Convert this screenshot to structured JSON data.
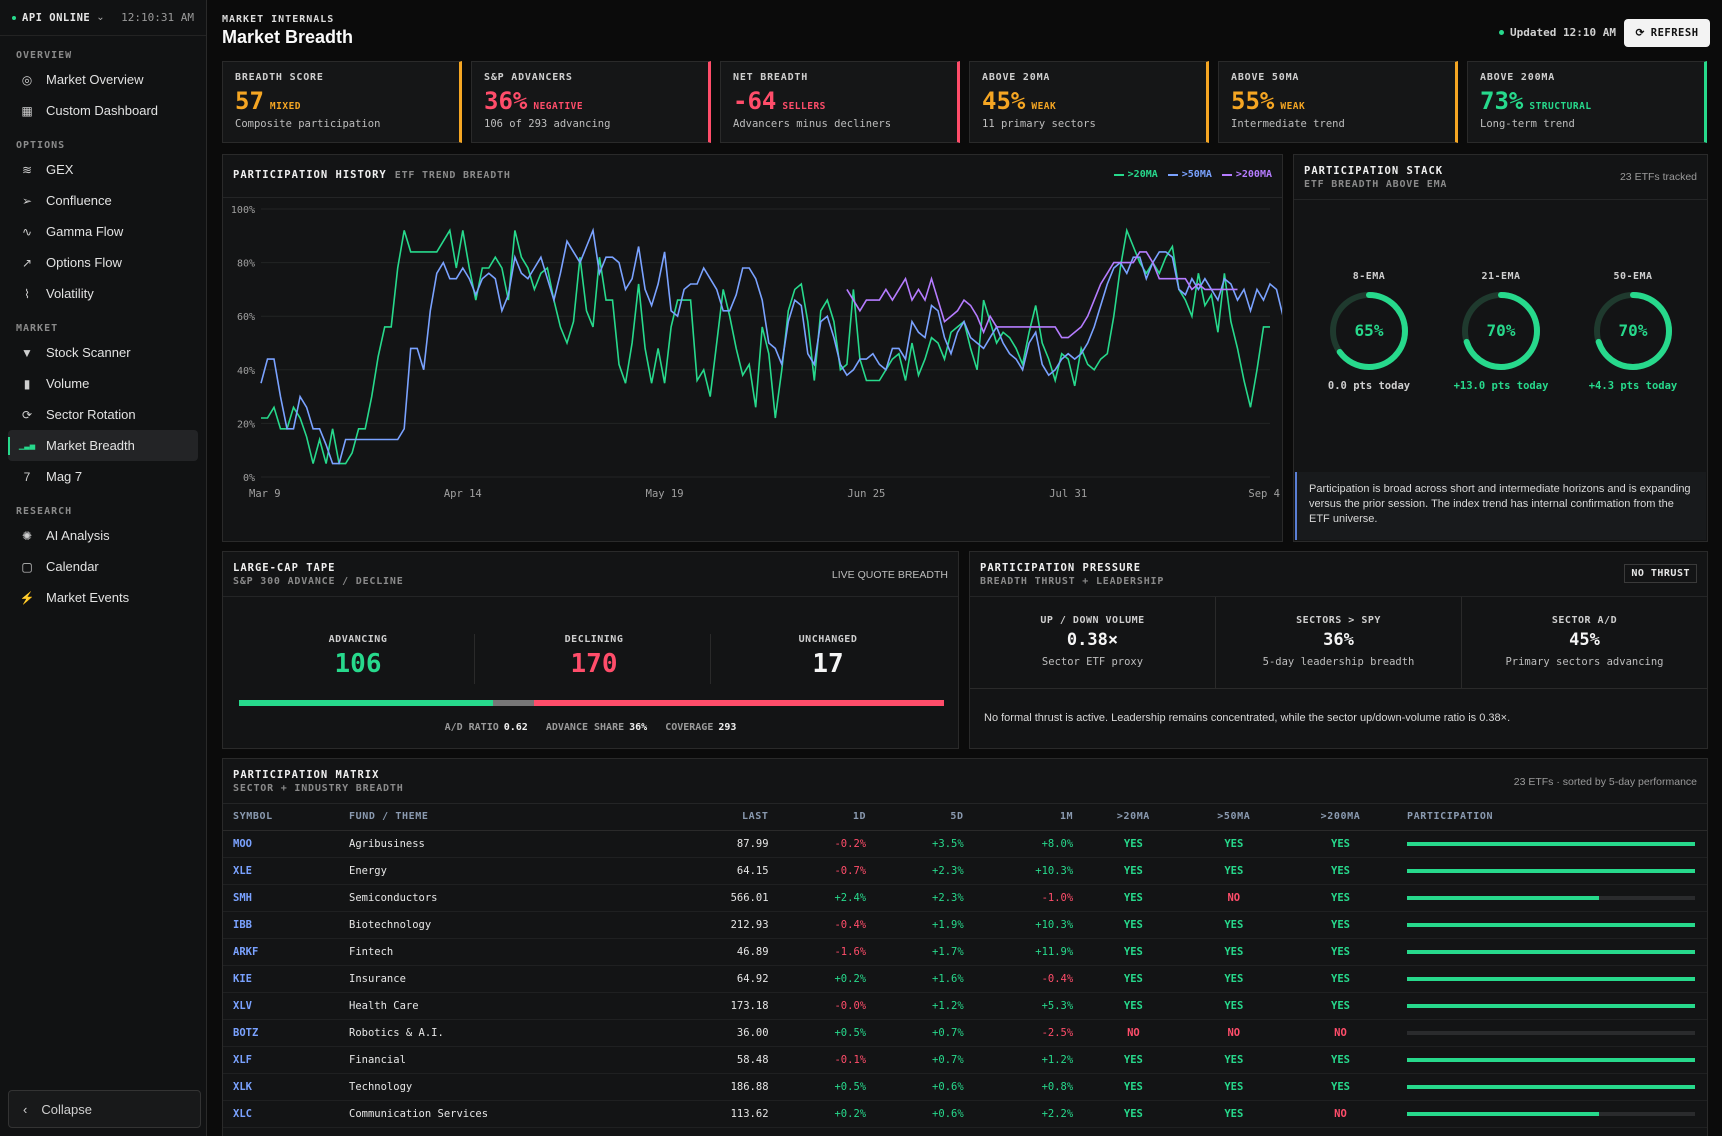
{
  "sidebar": {
    "api_status": "API ONLINE",
    "time": "12:10:31 AM",
    "sections": [
      {
        "label": "OVERVIEW",
        "items": [
          {
            "label": "Market Overview",
            "icon": "target-icon"
          },
          {
            "label": "Custom Dashboard",
            "icon": "grid-icon"
          }
        ]
      },
      {
        "label": "OPTIONS",
        "items": [
          {
            "label": "GEX",
            "icon": "layers-icon"
          },
          {
            "label": "Confluence",
            "icon": "send-icon"
          },
          {
            "label": "Gamma Flow",
            "icon": "pulse-icon"
          },
          {
            "label": "Options Flow",
            "icon": "trend-icon"
          },
          {
            "label": "Volatility",
            "icon": "chart-icon"
          }
        ]
      },
      {
        "label": "MARKET",
        "items": [
          {
            "label": "Stock Scanner",
            "icon": "filter-icon"
          },
          {
            "label": "Volume",
            "icon": "bar-chart-icon"
          },
          {
            "label": "Sector Rotation",
            "icon": "refresh-icon"
          },
          {
            "label": "Market Breadth",
            "icon": "signal-icon",
            "active": true
          },
          {
            "label": "Mag 7",
            "icon": "seven-icon"
          }
        ]
      },
      {
        "label": "RESEARCH",
        "items": [
          {
            "label": "AI Analysis",
            "icon": "ai-icon"
          },
          {
            "label": "Calendar",
            "icon": "calendar-icon"
          },
          {
            "label": "Market Events",
            "icon": "bolt-icon"
          }
        ]
      }
    ],
    "collapse_label": "Collapse"
  },
  "header": {
    "kicker": "MARKET INTERNALS",
    "title": "Market Breadth",
    "updated": "Updated 12:10 AM",
    "refresh": "REFRESH"
  },
  "cards": [
    {
      "label": "BREADTH SCORE",
      "value": "57",
      "tag": "MIXED",
      "desc": "Composite participation",
      "color": "#f5a623",
      "border": "#f5a623"
    },
    {
      "label": "S&P ADVANCERS",
      "value": "36%",
      "tag": "NEGATIVE",
      "desc": "106 of 293 advancing",
      "color": "#ff4d6a",
      "border": "#ff4d6a"
    },
    {
      "label": "NET BREADTH",
      "value": "-64",
      "tag": "SELLERS",
      "desc": "Advancers minus decliners",
      "color": "#ff4d6a",
      "border": "#ff4d6a"
    },
    {
      "label": "ABOVE 20MA",
      "value": "45%",
      "tag": "WEAK",
      "desc": "11 primary sectors",
      "color": "#f5a623",
      "border": "#f5a623"
    },
    {
      "label": "ABOVE 50MA",
      "value": "55%",
      "tag": "WEAK",
      "desc": "Intermediate trend",
      "color": "#f5a623",
      "border": "#f5a623"
    },
    {
      "label": "ABOVE 200MA",
      "value": "73%",
      "tag": "STRUCTURAL",
      "desc": "Long-term trend",
      "color": "#27d98c",
      "border": "#27d98c"
    }
  ],
  "history": {
    "title": "PARTICIPATION HISTORY",
    "subtitle": "ETF TREND BREADTH",
    "chart_data": {
      "type": "line",
      "x_labels": [
        "Mar 9",
        "Apr 14",
        "May 19",
        "Jun 25",
        "Jul 31",
        "Sep 4"
      ],
      "y_ticks": [
        "0%",
        "20%",
        "40%",
        "60%",
        "80%",
        "100%"
      ],
      "ylim": [
        0,
        100
      ],
      "series": [
        {
          "name": ">20MA",
          "color": "#27d98c",
          "values": [
            22,
            22,
            26,
            18,
            18,
            26,
            22,
            15,
            5,
            14,
            5,
            18,
            5,
            5,
            9,
            18,
            18,
            30,
            45,
            56,
            56,
            78,
            92,
            84,
            84,
            84,
            84,
            84,
            88,
            92,
            78,
            92,
            78,
            66,
            78,
            78,
            82,
            78,
            66,
            92,
            82,
            78,
            70,
            76,
            78,
            66,
            56,
            50,
            58,
            82,
            62,
            56,
            82,
            66,
            66,
            42,
            35,
            50,
            72,
            48,
            35,
            48,
            35,
            56,
            66,
            66,
            66,
            36,
            40,
            30,
            50,
            70,
            60,
            48,
            38,
            42,
            26,
            56,
            46,
            22,
            40,
            62,
            70,
            72,
            58,
            36,
            62,
            66,
            58,
            40,
            42,
            70,
            44,
            36,
            36,
            36,
            40,
            44,
            46,
            36,
            50,
            38,
            44,
            52,
            50,
            44,
            54,
            56,
            58,
            48,
            40,
            66,
            58,
            50,
            54,
            52,
            48,
            42,
            54,
            64,
            50,
            44,
            36,
            46,
            44,
            34,
            48,
            42,
            40,
            44,
            46,
            60,
            78,
            92,
            86,
            80,
            76,
            80,
            76,
            82,
            86,
            70,
            66,
            60,
            76,
            64,
            68,
            54,
            76,
            58,
            48,
            36,
            26,
            40,
            56,
            56
          ]
        },
        {
          "name": ">50MA",
          "color": "#7aa2ff",
          "values": [
            35,
            44,
            44,
            30,
            18,
            18,
            30,
            26,
            18,
            18,
            12,
            5,
            5,
            14,
            14,
            14,
            14,
            14,
            14,
            14,
            14,
            14,
            18,
            48,
            48,
            40,
            62,
            76,
            80,
            74,
            74,
            78,
            74,
            68,
            74,
            76,
            74,
            62,
            68,
            82,
            76,
            74,
            78,
            82,
            74,
            66,
            76,
            88,
            84,
            80,
            86,
            92,
            76,
            82,
            82,
            80,
            70,
            74,
            86,
            70,
            64,
            72,
            84,
            62,
            60,
            70,
            72,
            72,
            78,
            74,
            70,
            62,
            62,
            68,
            78,
            78,
            74,
            66,
            50,
            48,
            42,
            58,
            66,
            64,
            46,
            42,
            58,
            60,
            52,
            42,
            38,
            40,
            44,
            44,
            46,
            42,
            40,
            48,
            48,
            44,
            58,
            54,
            52,
            64,
            62,
            52,
            46,
            54,
            58,
            52,
            50,
            48,
            52,
            56,
            50,
            46,
            44,
            40,
            50,
            54,
            42,
            38,
            40,
            44,
            46,
            44,
            46,
            50,
            56,
            64,
            72,
            78,
            80,
            76,
            82,
            82,
            74,
            80,
            84,
            84,
            82,
            70,
            68,
            74,
            70,
            74,
            70,
            66,
            74,
            72,
            66,
            70,
            62,
            70,
            66,
            72,
            70,
            60
          ]
        },
        {
          "name": ">200MA",
          "color": "#b57cff",
          "values": [
            null,
            null,
            null,
            null,
            null,
            null,
            null,
            null,
            null,
            null,
            null,
            null,
            null,
            null,
            null,
            null,
            null,
            null,
            null,
            null,
            null,
            null,
            null,
            null,
            null,
            null,
            null,
            null,
            null,
            null,
            null,
            null,
            null,
            null,
            null,
            null,
            null,
            null,
            null,
            null,
            null,
            null,
            null,
            null,
            null,
            null,
            null,
            null,
            null,
            null,
            null,
            null,
            null,
            null,
            null,
            null,
            null,
            null,
            null,
            null,
            null,
            null,
            null,
            null,
            null,
            null,
            null,
            null,
            null,
            null,
            null,
            null,
            null,
            null,
            null,
            null,
            null,
            null,
            null,
            null,
            null,
            null,
            null,
            null,
            null,
            null,
            null,
            null,
            null,
            null,
            70,
            66,
            62,
            66,
            66,
            66,
            70,
            66,
            70,
            74,
            66,
            70,
            66,
            74,
            66,
            58,
            60,
            62,
            66,
            64,
            60,
            54,
            60,
            56,
            56,
            56,
            56,
            56,
            56,
            56,
            56,
            56,
            56,
            52,
            52,
            54,
            56,
            60,
            66,
            72,
            76,
            80,
            80,
            80,
            80,
            84,
            84,
            80,
            74,
            74,
            74,
            74,
            74,
            70,
            72,
            70,
            70,
            70,
            70,
            70,
            70
          ]
        }
      ]
    }
  },
  "stack": {
    "title": "PARTICIPATION STACK",
    "subtitle": "ETF BREADTH ABOVE EMA",
    "count": "23 ETFs tracked",
    "gauges": [
      {
        "label": "8-EMA",
        "value": "65%",
        "pct": 0.65,
        "delta": "0.0 pts today",
        "delta_color": "#cfcfcf"
      },
      {
        "label": "21-EMA",
        "value": "70%",
        "pct": 0.7,
        "delta": "+13.0 pts today",
        "delta_color": "#27d98c"
      },
      {
        "label": "50-EMA",
        "value": "70%",
        "pct": 0.7,
        "delta": "+4.3 pts today",
        "delta_color": "#27d98c"
      }
    ],
    "note": "Participation is broad across short and intermediate horizons and is expanding versus the prior session. The index trend has internal confirmation from the ETF universe."
  },
  "tape": {
    "title": "LARGE-CAP TAPE",
    "subtitle": "S&P 300 ADVANCE / DECLINE",
    "right": "LIVE QUOTE BREADTH",
    "advancing_label": "ADVANCING",
    "advancing": "106",
    "declining_label": "DECLINING",
    "declining": "170",
    "unchanged_label": "UNCHANGED",
    "unchanged": "17",
    "adv_share": 0.36,
    "unch_share": 0.058,
    "ad_label": "A/D RATIO",
    "ad": "0.62",
    "share_label": "ADVANCE SHARE",
    "share": "36%",
    "cov_label": "COVERAGE",
    "cov": "293"
  },
  "pressure": {
    "title": "PARTICIPATION PRESSURE",
    "subtitle": "BREADTH THRUST + LEADERSHIP",
    "badge": "NO THRUST",
    "cols": [
      {
        "label": "UP / DOWN VOLUME",
        "value": "0.38×",
        "desc": "Sector ETF proxy"
      },
      {
        "label": "SECTORS > SPY",
        "value": "36%",
        "desc": "5-day leadership breadth"
      },
      {
        "label": "SECTOR A/D",
        "value": "45%",
        "desc": "Primary sectors advancing"
      }
    ],
    "note": "No formal thrust is active. Leadership remains concentrated, while the sector up/down-volume ratio is 0.38×."
  },
  "matrix": {
    "title": "PARTICIPATION MATRIX",
    "subtitle": "SECTOR + INDUSTRY BREADTH",
    "right": "23 ETFs · sorted by 5-day performance",
    "headers": [
      "SYMBOL",
      "FUND / THEME",
      "LAST",
      "1D",
      "5D",
      "1M",
      ">20MA",
      ">50MA",
      ">200MA",
      "PARTICIPATION"
    ],
    "rows": [
      {
        "sym": "MOO",
        "name": "Agribusiness",
        "last": "87.99",
        "d1": "-0.2%",
        "d5": "+3.5%",
        "m1": "+8.0%",
        "a": "YES",
        "b": "YES",
        "c": "YES",
        "p": 1
      },
      {
        "sym": "XLE",
        "name": "Energy",
        "last": "64.15",
        "d1": "-0.7%",
        "d5": "+2.3%",
        "m1": "+10.3%",
        "a": "YES",
        "b": "YES",
        "c": "YES",
        "p": 1
      },
      {
        "sym": "SMH",
        "name": "Semiconductors",
        "last": "566.01",
        "d1": "+2.4%",
        "d5": "+2.3%",
        "m1": "-1.0%",
        "a": "YES",
        "b": "NO",
        "c": "YES",
        "p": 0.667
      },
      {
        "sym": "IBB",
        "name": "Biotechnology",
        "last": "212.93",
        "d1": "-0.4%",
        "d5": "+1.9%",
        "m1": "+10.3%",
        "a": "YES",
        "b": "YES",
        "c": "YES",
        "p": 1
      },
      {
        "sym": "ARKF",
        "name": "Fintech",
        "last": "46.89",
        "d1": "-1.6%",
        "d5": "+1.7%",
        "m1": "+11.9%",
        "a": "YES",
        "b": "YES",
        "c": "YES",
        "p": 1
      },
      {
        "sym": "KIE",
        "name": "Insurance",
        "last": "64.92",
        "d1": "+0.2%",
        "d5": "+1.6%",
        "m1": "-0.4%",
        "a": "YES",
        "b": "YES",
        "c": "YES",
        "p": 1
      },
      {
        "sym": "XLV",
        "name": "Health Care",
        "last": "173.18",
        "d1": "-0.0%",
        "d5": "+1.2%",
        "m1": "+5.3%",
        "a": "YES",
        "b": "YES",
        "c": "YES",
        "p": 1
      },
      {
        "sym": "BOTZ",
        "name": "Robotics & A.I.",
        "last": "36.00",
        "d1": "+0.5%",
        "d5": "+0.7%",
        "m1": "-2.5%",
        "a": "NO",
        "b": "NO",
        "c": "NO",
        "p": 0
      },
      {
        "sym": "XLF",
        "name": "Financial",
        "last": "58.48",
        "d1": "-0.1%",
        "d5": "+0.7%",
        "m1": "+1.2%",
        "a": "YES",
        "b": "YES",
        "c": "YES",
        "p": 1
      },
      {
        "sym": "XLK",
        "name": "Technology",
        "last": "186.88",
        "d1": "+0.5%",
        "d5": "+0.6%",
        "m1": "+0.8%",
        "a": "YES",
        "b": "YES",
        "c": "YES",
        "p": 1
      },
      {
        "sym": "XLC",
        "name": "Communication Services",
        "last": "113.62",
        "d1": "+0.2%",
        "d5": "+0.6%",
        "m1": "+2.2%",
        "a": "YES",
        "b": "YES",
        "c": "NO",
        "p": 0.667
      }
    ]
  }
}
